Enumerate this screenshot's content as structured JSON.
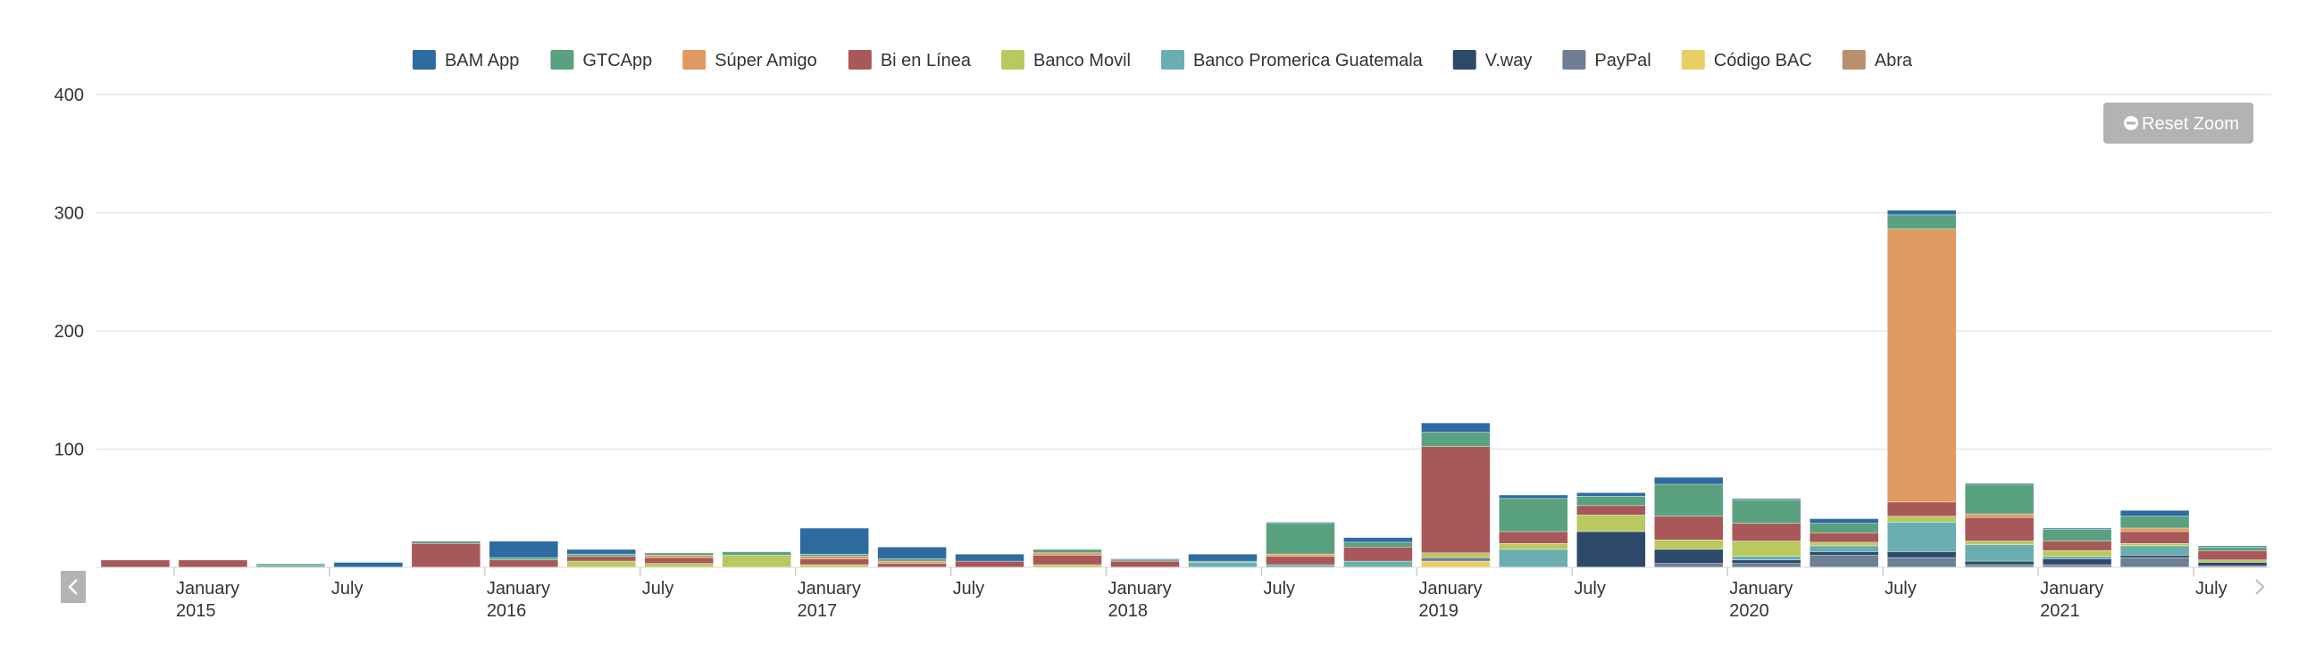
{
  "chart_data": {
    "type": "bar",
    "stacked": true,
    "title": "",
    "xlabel": "",
    "ylabel": "",
    "ylim": [
      0,
      400
    ],
    "y_ticks": [
      0,
      100,
      200,
      300,
      400
    ],
    "y_tick_labels": [
      "",
      "100",
      "200",
      "300",
      "400"
    ],
    "grid": true,
    "legend_position": "top-center",
    "categories": [
      "2014-10",
      "2015-01",
      "2015-04",
      "2015-07",
      "2015-10",
      "2016-01",
      "2016-04",
      "2016-07",
      "2016-10",
      "2017-01",
      "2017-04",
      "2017-07",
      "2017-10",
      "2018-01",
      "2018-04",
      "2018-07",
      "2018-10",
      "2019-01",
      "2019-04",
      "2019-07",
      "2019-10",
      "2020-01",
      "2020-04",
      "2020-07",
      "2020-10",
      "2021-01",
      "2021-04",
      "2021-07"
    ],
    "x_tick_labels": [
      {
        "index": 1,
        "month": "January",
        "year": "2015"
      },
      {
        "index": 3,
        "month": "July",
        "year": ""
      },
      {
        "index": 5,
        "month": "January",
        "year": "2016"
      },
      {
        "index": 7,
        "month": "July",
        "year": ""
      },
      {
        "index": 9,
        "month": "January",
        "year": "2017"
      },
      {
        "index": 11,
        "month": "July",
        "year": ""
      },
      {
        "index": 13,
        "month": "January",
        "year": "2018"
      },
      {
        "index": 15,
        "month": "July",
        "year": ""
      },
      {
        "index": 17,
        "month": "January",
        "year": "2019"
      },
      {
        "index": 19,
        "month": "July",
        "year": ""
      },
      {
        "index": 21,
        "month": "January",
        "year": "2020"
      },
      {
        "index": 23,
        "month": "July",
        "year": ""
      },
      {
        "index": 25,
        "month": "January",
        "year": "2021"
      },
      {
        "index": 27,
        "month": "July",
        "year": ""
      }
    ],
    "series": [
      {
        "name": "Abra",
        "color": "#b8906c",
        "values": [
          0,
          0,
          0,
          0,
          0,
          0,
          0,
          0,
          0,
          0,
          0,
          0,
          0,
          0,
          0,
          0,
          0,
          0,
          0,
          0,
          0,
          0,
          0,
          0,
          0,
          0,
          0,
          0
        ]
      },
      {
        "name": "Código BAC",
        "color": "#e8cf63",
        "values": [
          0,
          0,
          0,
          0,
          0,
          0,
          0,
          0,
          0,
          0,
          0,
          0,
          0,
          0,
          0,
          0,
          0,
          5,
          0,
          0,
          0,
          0,
          0,
          0,
          0,
          0,
          0,
          0
        ]
      },
      {
        "name": "PayPal",
        "color": "#6e7f92",
        "values": [
          0,
          0,
          0,
          0,
          0,
          0,
          0,
          0,
          0,
          0,
          0,
          0,
          0,
          0,
          0,
          0,
          0,
          3,
          0,
          0,
          3,
          3,
          10,
          8,
          2,
          2,
          8,
          1
        ]
      },
      {
        "name": "V.way",
        "color": "#2e4a6b",
        "values": [
          0,
          0,
          0,
          0,
          0,
          0,
          0,
          0,
          0,
          0,
          0,
          0,
          0,
          0,
          0,
          0,
          0,
          0,
          0,
          30,
          12,
          3,
          3,
          5,
          3,
          5,
          2,
          3
        ]
      },
      {
        "name": "Banco Promerica Guatemala",
        "color": "#6aaeb0",
        "values": [
          0,
          0,
          2,
          0,
          0,
          0,
          0,
          0,
          0,
          0,
          0,
          0,
          0,
          0,
          4,
          2,
          5,
          0,
          15,
          0,
          0,
          3,
          5,
          25,
          14,
          2,
          8,
          0
        ]
      },
      {
        "name": "Banco Movil",
        "color": "#b9c95f",
        "values": [
          0,
          0,
          0,
          0,
          0,
          0,
          5,
          3,
          10,
          2,
          0,
          0,
          2,
          0,
          0,
          0,
          0,
          4,
          5,
          14,
          8,
          13,
          3,
          5,
          3,
          5,
          2,
          2
        ]
      },
      {
        "name": "Bi en Línea",
        "color": "#a85858",
        "values": [
          6,
          6,
          0,
          0,
          20,
          6,
          4,
          5,
          0,
          5,
          3,
          5,
          8,
          5,
          0,
          7,
          12,
          90,
          10,
          8,
          20,
          15,
          8,
          12,
          20,
          8,
          10,
          8
        ]
      },
      {
        "name": "Súper Amigo",
        "color": "#e09960",
        "values": [
          0,
          0,
          0,
          0,
          0,
          0,
          0,
          2,
          0,
          2,
          2,
          0,
          2,
          0,
          0,
          2,
          0,
          0,
          0,
          0,
          0,
          0,
          0,
          231,
          3,
          0,
          3,
          0
        ]
      },
      {
        "name": "GTCApp",
        "color": "#5aa17f",
        "values": [
          0,
          0,
          1,
          0,
          2,
          2,
          2,
          2,
          3,
          2,
          2,
          0,
          3,
          1,
          1,
          26,
          4,
          12,
          28,
          8,
          27,
          20,
          8,
          12,
          25,
          10,
          10,
          3
        ]
      },
      {
        "name": "BAM App",
        "color": "#2e6ba1",
        "values": [
          0,
          0,
          0,
          4,
          0,
          14,
          4,
          0,
          0,
          22,
          10,
          6,
          0,
          1,
          6,
          1,
          4,
          8,
          3,
          3,
          6,
          1,
          4,
          4,
          1,
          1,
          5,
          1
        ]
      }
    ],
    "legend_order": [
      "BAM App",
      "GTCApp",
      "Súper Amigo",
      "Bi en Línea",
      "Banco Movil",
      "Banco Promerica Guatemala",
      "V.way",
      "PayPal",
      "Código BAC",
      "Abra"
    ]
  },
  "reset_zoom_label": "Reset Zoom",
  "colors": {
    "grid": "#e6e6e6",
    "axis_text": "#333333",
    "reset_button_bg": "#b3b3b3",
    "nav_button_bg": "#b3b3b3"
  },
  "icons": {
    "reset": "minus-circle-icon",
    "nav_left": "chevron-left-icon",
    "nav_right": "chevron-right-icon"
  }
}
